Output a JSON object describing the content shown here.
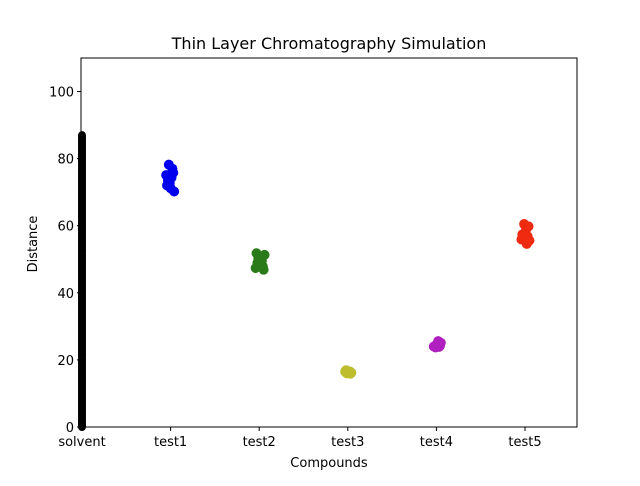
{
  "chart_data": {
    "type": "scatter",
    "title": "Thin Layer Chromatography Simulation",
    "xlabel": "Compounds",
    "ylabel": "Distance",
    "categories": [
      "solvent",
      "test1",
      "test2",
      "test3",
      "test4",
      "test5"
    ],
    "ylim": [
      0,
      110
    ],
    "yticks": [
      0,
      20,
      40,
      60,
      80,
      100
    ],
    "grid": false,
    "legend": "none",
    "series": [
      {
        "category": "test1",
        "color": "#0000ee",
        "points": [
          [
            0.98,
            78.2
          ],
          [
            1.02,
            77.0
          ],
          [
            0.95,
            75.1
          ],
          [
            1.01,
            74.3
          ],
          [
            1.03,
            75.8
          ],
          [
            0.97,
            73.5
          ],
          [
            0.99,
            72.6
          ],
          [
            0.96,
            72.0
          ],
          [
            1.0,
            71.2
          ],
          [
            1.04,
            70.2
          ]
        ]
      },
      {
        "category": "test2",
        "color": "#2b7a1a",
        "points": [
          [
            0.97,
            51.8
          ],
          [
            1.06,
            51.3
          ],
          [
            1.01,
            50.8
          ],
          [
            0.99,
            50.2
          ],
          [
            1.03,
            49.6
          ],
          [
            0.98,
            48.9
          ],
          [
            1.02,
            48.4
          ],
          [
            0.96,
            47.4
          ],
          [
            1.04,
            47.9
          ],
          [
            1.05,
            46.9
          ]
        ]
      },
      {
        "category": "test3",
        "color": "#bdbd2e",
        "points": [
          [
            0.98,
            16.9
          ],
          [
            1.02,
            16.6
          ],
          [
            1.04,
            16.2
          ],
          [
            0.99,
            16.0
          ],
          [
            1.03,
            15.9
          ],
          [
            1.01,
            16.4
          ],
          [
            0.97,
            16.5
          ]
        ]
      },
      {
        "category": "test4",
        "color": "#b020c0",
        "points": [
          [
            1.02,
            25.6
          ],
          [
            1.05,
            25.1
          ],
          [
            1.0,
            24.6
          ],
          [
            0.97,
            24.0
          ],
          [
            1.04,
            24.2
          ],
          [
            0.99,
            23.7
          ],
          [
            1.03,
            23.9
          ]
        ]
      },
      {
        "category": "test5",
        "color": "#ee2a10",
        "points": [
          [
            0.99,
            60.5
          ],
          [
            1.04,
            59.8
          ],
          [
            1.01,
            58.7
          ],
          [
            0.97,
            57.4
          ],
          [
            1.03,
            56.8
          ],
          [
            0.96,
            55.9
          ],
          [
            1.0,
            56.3
          ],
          [
            1.05,
            55.6
          ],
          [
            1.02,
            54.6
          ]
        ]
      }
    ],
    "solvent_front": {
      "category": "solvent",
      "color": "#000000",
      "max_distance": 87
    }
  }
}
